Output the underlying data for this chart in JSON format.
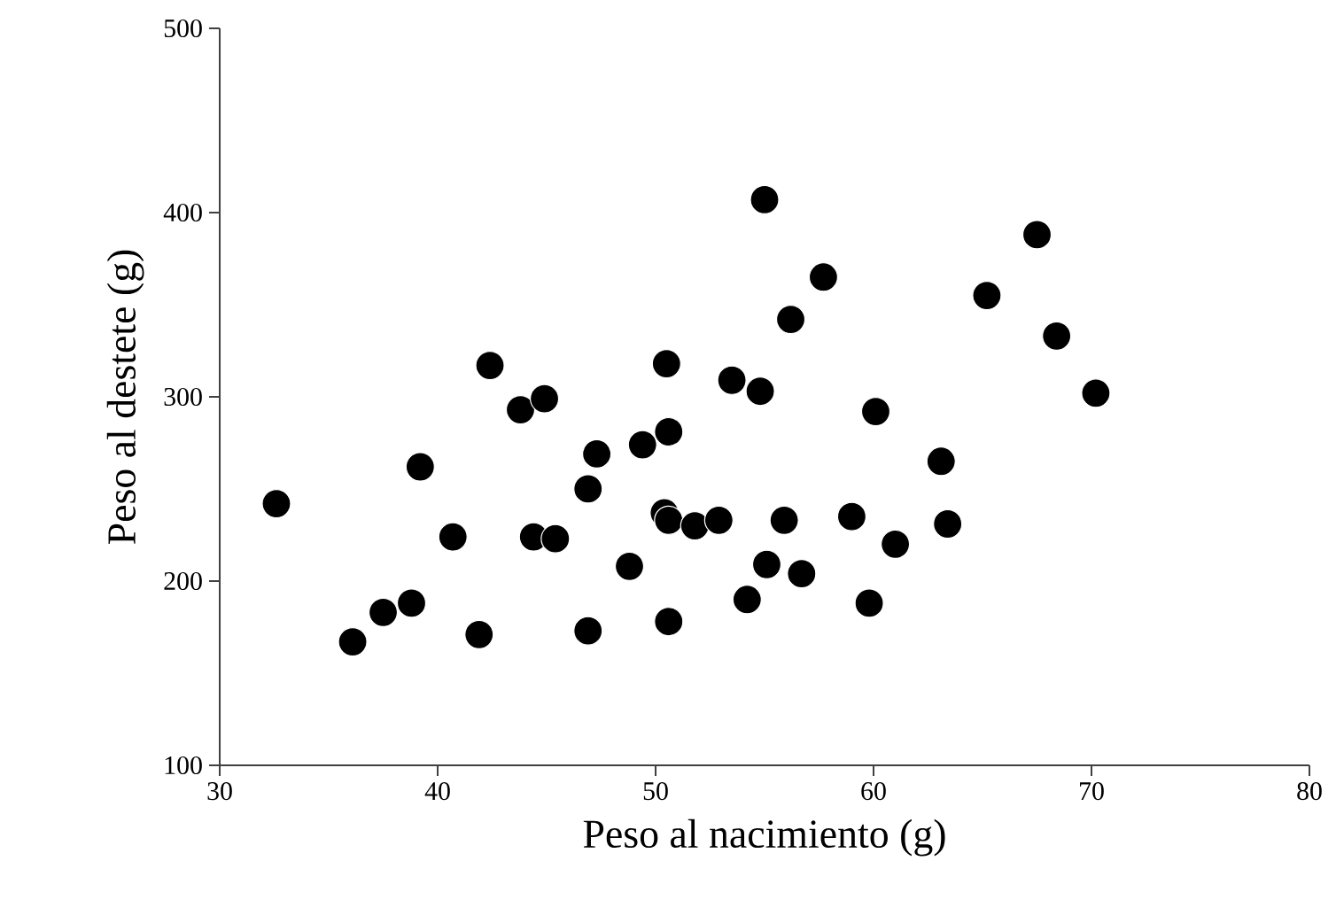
{
  "chart_data": {
    "type": "scatter",
    "xlabel": "Peso al nacimiento (g)",
    "ylabel": "Peso al destete (g)",
    "xlim": [
      30,
      80
    ],
    "ylim": [
      100,
      500
    ],
    "xticks": [
      30,
      40,
      50,
      60,
      70,
      80
    ],
    "yticks": [
      100,
      200,
      300,
      400,
      500
    ],
    "marker": "circle",
    "grid": false,
    "series": [
      {
        "color": "#000000",
        "x": [
          32.6,
          36.1,
          37.5,
          38.8,
          39.2,
          40.7,
          41.9,
          42.4,
          43.8,
          44.9,
          44.4,
          45.4,
          46.9,
          47.3,
          46.9,
          48.8,
          49.4,
          50.5,
          50.6,
          50.4,
          50.6,
          51.8,
          52.9,
          50.6,
          53.5,
          54.8,
          55.1,
          54.2,
          55.0,
          57.7,
          56.2,
          60.1,
          63.1,
          55.9,
          59.0,
          63.4,
          61.0,
          56.7,
          59.8,
          67.5,
          65.2,
          68.4,
          70.2
        ],
        "values": [
          242,
          167,
          183,
          188,
          262,
          224,
          171,
          317,
          293,
          299,
          224,
          223,
          250,
          269,
          173,
          208,
          274,
          318,
          281,
          237,
          233,
          230,
          233,
          178,
          309,
          303,
          209,
          190,
          407,
          365,
          342,
          292,
          265,
          233,
          235,
          231,
          220,
          204,
          188,
          388,
          355,
          333,
          302
        ]
      }
    ]
  }
}
